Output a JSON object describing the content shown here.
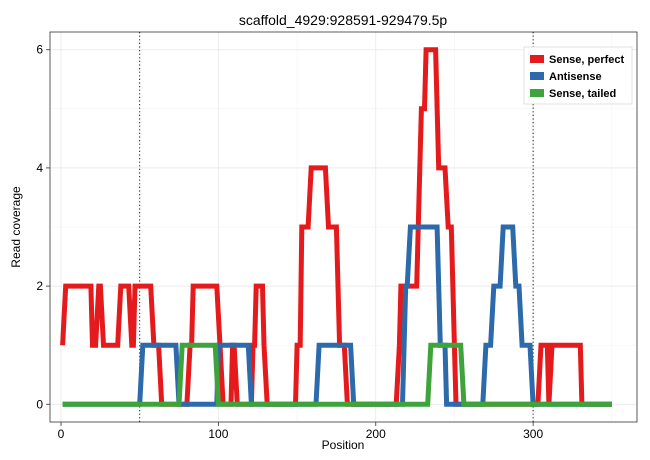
{
  "chart_data": {
    "type": "line",
    "title": "scaffold_4929:928591-929479.5p",
    "xlabel": "Position",
    "ylabel": "Read coverage",
    "xlim": [
      -7,
      366
    ],
    "ylim": [
      -0.3,
      6.3
    ],
    "xticks": [
      0,
      100,
      200,
      300
    ],
    "yticks": [
      0,
      2,
      4,
      6
    ],
    "grid": true,
    "legend_position": "top-right",
    "vlines": [
      50,
      300
    ],
    "series": [
      {
        "name": "Sense, perfect",
        "color": "#e41a1c",
        "points": [
          [
            1,
            1
          ],
          [
            3,
            2
          ],
          [
            19,
            2
          ],
          [
            20,
            1
          ],
          [
            22,
            1
          ],
          [
            24,
            2
          ],
          [
            25,
            2
          ],
          [
            27,
            1
          ],
          [
            36,
            1
          ],
          [
            38,
            2
          ],
          [
            43,
            2
          ],
          [
            45,
            1
          ],
          [
            46,
            1
          ],
          [
            47,
            2
          ],
          [
            57,
            2
          ],
          [
            59,
            1
          ],
          [
            62,
            1
          ],
          [
            64,
            0
          ],
          [
            80,
            0
          ],
          [
            82,
            1
          ],
          [
            83,
            1
          ],
          [
            84,
            2
          ],
          [
            99,
            2
          ],
          [
            101,
            1
          ],
          [
            103,
            0
          ],
          [
            108,
            0
          ],
          [
            109,
            1
          ],
          [
            110,
            1
          ],
          [
            112,
            0
          ],
          [
            121,
            0
          ],
          [
            122,
            1
          ],
          [
            123,
            1
          ],
          [
            124,
            2
          ],
          [
            128,
            2
          ],
          [
            129,
            1
          ],
          [
            131,
            0
          ],
          [
            149,
            0
          ],
          [
            150,
            1
          ],
          [
            152,
            1
          ],
          [
            153,
            3
          ],
          [
            157,
            3
          ],
          [
            159,
            4
          ],
          [
            168,
            4
          ],
          [
            170,
            3
          ],
          [
            175,
            3
          ],
          [
            177,
            1
          ],
          [
            180,
            1
          ],
          [
            182,
            0
          ],
          [
            213,
            0
          ],
          [
            215,
            1
          ],
          [
            216,
            2
          ],
          [
            226,
            2
          ],
          [
            228,
            4
          ],
          [
            229,
            5
          ],
          [
            231,
            5
          ],
          [
            232,
            6
          ],
          [
            238,
            6
          ],
          [
            240,
            4
          ],
          [
            244,
            4
          ],
          [
            246,
            3
          ],
          [
            248,
            3
          ],
          [
            250,
            1
          ],
          [
            251,
            0
          ],
          [
            303,
            0
          ],
          [
            305,
            1
          ],
          [
            309,
            1
          ],
          [
            310,
            0
          ],
          [
            312,
            1
          ],
          [
            330,
            1
          ],
          [
            331,
            0
          ],
          [
            350,
            0
          ]
        ]
      },
      {
        "name": "Antisense",
        "color": "#2c6aab",
        "points": [
          [
            1,
            0
          ],
          [
            50,
            0
          ],
          [
            52,
            1
          ],
          [
            73,
            1
          ],
          [
            75,
            0
          ],
          [
            99,
            0
          ],
          [
            100,
            1
          ],
          [
            119,
            1
          ],
          [
            121,
            0
          ],
          [
            162,
            0
          ],
          [
            164,
            1
          ],
          [
            184,
            1
          ],
          [
            186,
            0
          ],
          [
            217,
            0
          ],
          [
            219,
            2
          ],
          [
            220,
            2
          ],
          [
            222,
            3
          ],
          [
            239,
            3
          ],
          [
            241,
            1
          ],
          [
            244,
            1
          ],
          [
            245,
            0
          ],
          [
            268,
            0
          ],
          [
            270,
            1
          ],
          [
            273,
            1
          ],
          [
            275,
            2
          ],
          [
            279,
            2
          ],
          [
            281,
            3
          ],
          [
            287,
            3
          ],
          [
            289,
            2
          ],
          [
            291,
            2
          ],
          [
            293,
            1
          ],
          [
            298,
            1
          ],
          [
            300,
            0
          ],
          [
            350,
            0
          ]
        ]
      },
      {
        "name": "Sense, tailed",
        "color": "#3fa33c",
        "points": [
          [
            1,
            0
          ],
          [
            75,
            0
          ],
          [
            77,
            1
          ],
          [
            98,
            1
          ],
          [
            100,
            0
          ],
          [
            233,
            0
          ],
          [
            235,
            1
          ],
          [
            254,
            1
          ],
          [
            256,
            0
          ],
          [
            350,
            0
          ]
        ]
      }
    ]
  }
}
